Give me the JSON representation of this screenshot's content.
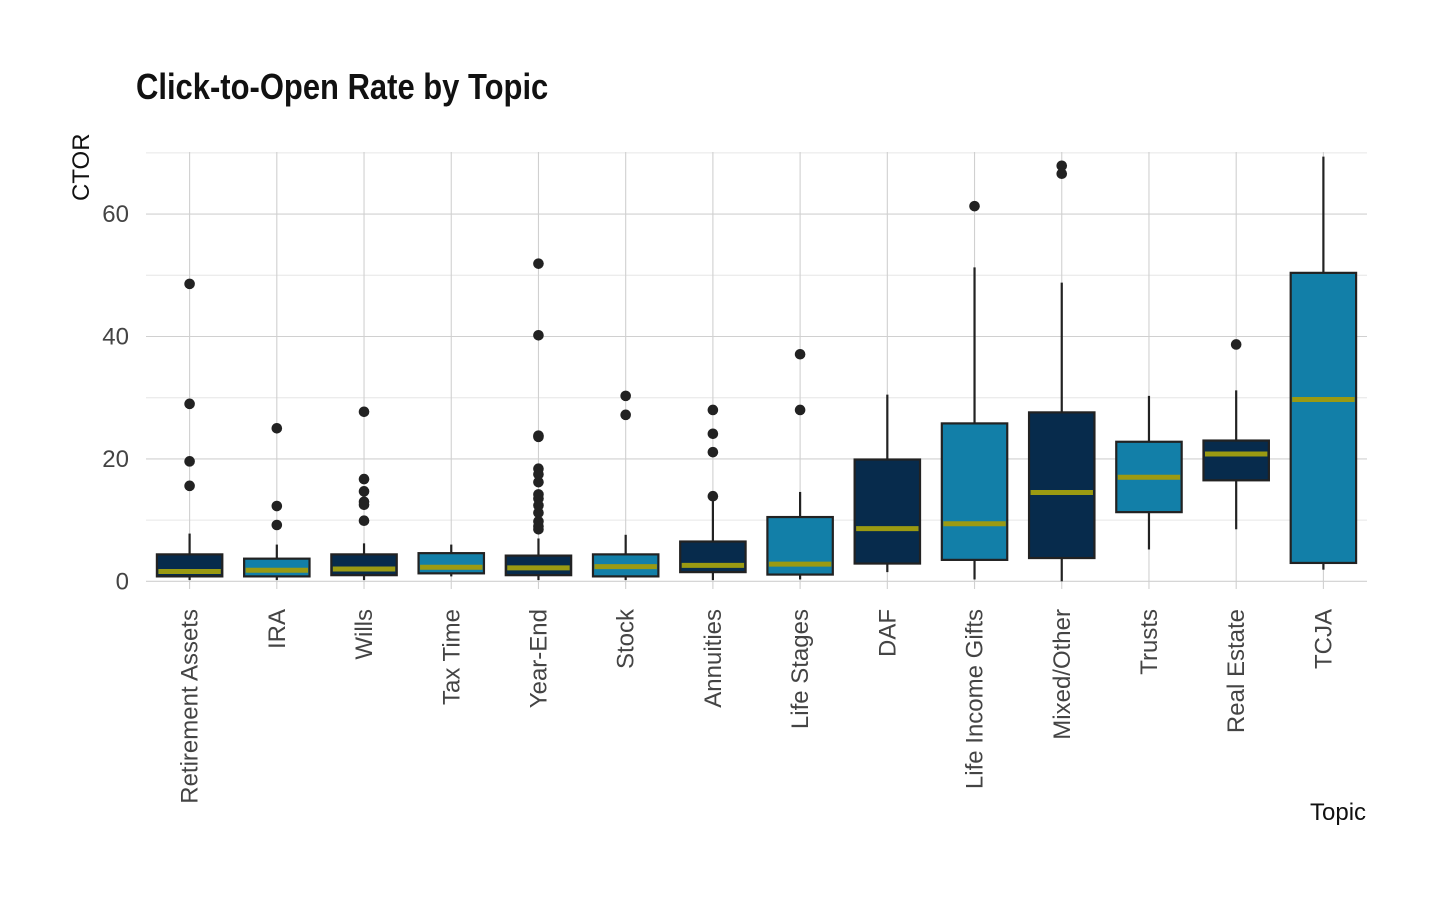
{
  "chart_data": {
    "type": "box",
    "title": "Click-to-Open Rate by Topic",
    "xlabel": "Topic",
    "ylabel": "CTOR",
    "ylim": [
      -1.5,
      72
    ],
    "yticks": [
      0,
      20,
      40,
      60
    ],
    "grid": true,
    "colors": {
      "dark": "#072b4c",
      "light": "#127fa8",
      "median": "#9a9a12",
      "outline": "#222222"
    },
    "categories": [
      "Retirement Assets",
      "IRA",
      "Wills",
      "Tax Time",
      "Year-End",
      "Stock",
      "Annuities",
      "Life Stages",
      "DAF",
      "Life Income Gifts",
      "Mixed/Other",
      "Trusts",
      "Real Estate",
      "TCJA"
    ],
    "boxes": [
      {
        "topic": "Retirement Assets",
        "fill": "dark",
        "min": 0.2,
        "q1": 0.8,
        "median": 1.6,
        "q3": 4.4,
        "max": 7.8,
        "outliers": [
          48.6,
          29.0,
          19.6,
          15.6
        ]
      },
      {
        "topic": "IRA",
        "fill": "light",
        "min": 0.2,
        "q1": 0.8,
        "median": 1.8,
        "q3": 3.7,
        "max": 6.0,
        "outliers": [
          25.0,
          12.3,
          9.2
        ]
      },
      {
        "topic": "Wills",
        "fill": "dark",
        "min": 0.2,
        "q1": 1.0,
        "median": 2.0,
        "q3": 4.4,
        "max": 6.2,
        "outliers": [
          27.7,
          16.7,
          14.7,
          13.0,
          12.5,
          9.9
        ]
      },
      {
        "topic": "Tax Time",
        "fill": "light",
        "min": 0.8,
        "q1": 1.3,
        "median": 2.3,
        "q3": 4.6,
        "max": 6.0,
        "outliers": []
      },
      {
        "topic": "Year-End",
        "fill": "dark",
        "min": 0.2,
        "q1": 1.0,
        "median": 2.2,
        "q3": 4.2,
        "max": 7.0,
        "outliers": [
          51.9,
          40.2,
          23.8,
          23.6,
          18.4,
          17.5,
          16.2,
          14.2,
          13.5,
          12.4,
          11.2,
          9.8,
          9.0,
          8.5
        ]
      },
      {
        "topic": "Stock",
        "fill": "light",
        "min": 0.2,
        "q1": 0.8,
        "median": 2.4,
        "q3": 4.4,
        "max": 7.6,
        "outliers": [
          30.3,
          27.2
        ]
      },
      {
        "topic": "Annuities",
        "fill": "dark",
        "min": 0.2,
        "q1": 1.5,
        "median": 2.6,
        "q3": 6.5,
        "max": 13.8,
        "outliers": [
          28.0,
          24.1,
          21.1,
          13.9
        ]
      },
      {
        "topic": "Life Stages",
        "fill": "light",
        "min": 0.3,
        "q1": 1.1,
        "median": 2.8,
        "q3": 10.5,
        "max": 14.6,
        "outliers": [
          37.1,
          28.0
        ]
      },
      {
        "topic": "DAF",
        "fill": "dark",
        "min": 1.5,
        "q1": 2.9,
        "median": 8.6,
        "q3": 19.9,
        "max": 30.5,
        "outliers": []
      },
      {
        "topic": "Life Income Gifts",
        "fill": "light",
        "min": 0.3,
        "q1": 3.5,
        "median": 9.4,
        "q3": 25.8,
        "max": 51.3,
        "outliers": [
          61.3
        ]
      },
      {
        "topic": "Mixed/Other",
        "fill": "dark",
        "min": 0.0,
        "q1": 3.8,
        "median": 14.5,
        "q3": 27.6,
        "max": 48.8,
        "outliers": [
          67.9,
          66.6
        ]
      },
      {
        "topic": "Trusts",
        "fill": "light",
        "min": 5.2,
        "q1": 11.3,
        "median": 17.0,
        "q3": 22.8,
        "max": 30.3,
        "outliers": []
      },
      {
        "topic": "Real Estate",
        "fill": "dark",
        "min": 8.5,
        "q1": 16.5,
        "median": 20.8,
        "q3": 23.0,
        "max": 31.2,
        "outliers": [
          38.7
        ]
      },
      {
        "topic": "TCJA",
        "fill": "light",
        "min": 1.9,
        "q1": 3.0,
        "median": 29.7,
        "q3": 50.4,
        "max": 69.4,
        "outliers": []
      }
    ]
  }
}
